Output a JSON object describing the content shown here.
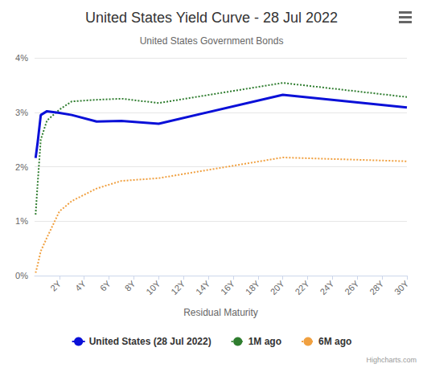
{
  "chart_data": {
    "type": "line",
    "title": "United States Yield Curve - 28 Jul 2022",
    "subtitle": "United States Government Bonds",
    "xlabel": "Residual Maturity",
    "credits": "Highcharts.com",
    "x": [
      0.083,
      0.25,
      0.5,
      1,
      2,
      3,
      5,
      7,
      10,
      20,
      30
    ],
    "series": [
      {
        "name": "United States (28 Jul 2022)",
        "color": "#0a10d8",
        "line_style": "solid",
        "values": [
          2.16,
          2.45,
          2.95,
          3.02,
          2.99,
          2.95,
          2.83,
          2.84,
          2.79,
          3.32,
          3.09
        ]
      },
      {
        "name": "1M ago",
        "color": "#2f7d2f",
        "line_style": "dotted",
        "values": [
          1.12,
          1.7,
          2.5,
          2.85,
          3.05,
          3.2,
          3.23,
          3.25,
          3.17,
          3.54,
          3.28
        ]
      },
      {
        "name": "6M ago",
        "color": "#f0a040",
        "line_style": "dotted",
        "values": [
          0.05,
          0.2,
          0.45,
          0.7,
          1.18,
          1.37,
          1.6,
          1.74,
          1.79,
          2.17,
          2.1
        ]
      }
    ],
    "xlim": [
      0,
      30
    ],
    "xticks": [
      {
        "value": 2,
        "label": "2Y"
      },
      {
        "value": 4,
        "label": "4Y"
      },
      {
        "value": 6,
        "label": "6Y"
      },
      {
        "value": 8,
        "label": "8Y"
      },
      {
        "value": 10,
        "label": "10Y"
      },
      {
        "value": 12,
        "label": "12Y"
      },
      {
        "value": 14,
        "label": "14Y"
      },
      {
        "value": 16,
        "label": "16Y"
      },
      {
        "value": 18,
        "label": "18Y"
      },
      {
        "value": 20,
        "label": "20Y"
      },
      {
        "value": 22,
        "label": "22Y"
      },
      {
        "value": 24,
        "label": "24Y"
      },
      {
        "value": 26,
        "label": "26Y"
      },
      {
        "value": 28,
        "label": "28Y"
      },
      {
        "value": 30,
        "label": "30Y"
      }
    ],
    "ylim": [
      0,
      4
    ],
    "yticks": [
      {
        "value": 0,
        "label": "0%"
      },
      {
        "value": 1,
        "label": "1%"
      },
      {
        "value": 2,
        "label": "2%"
      },
      {
        "value": 3,
        "label": "3%"
      },
      {
        "value": 4,
        "label": "4%"
      }
    ],
    "grid": true,
    "legend": "bottom",
    "marker": "none"
  }
}
